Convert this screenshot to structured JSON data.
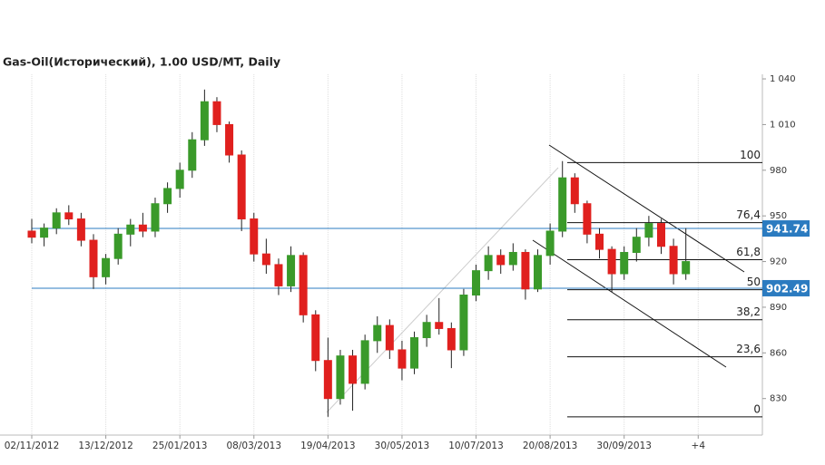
{
  "chart_data": {
    "type": "candlestick",
    "title": "Gas-Oil(Исторический), 1.00 USD/MT, Daily",
    "x": [
      0,
      5,
      10,
      15,
      20,
      25,
      30,
      35,
      40,
      45,
      50,
      55,
      60,
      65,
      70,
      75,
      80,
      85,
      90,
      95,
      100,
      105,
      110,
      115,
      120,
      125,
      130,
      135,
      140,
      145,
      150,
      155,
      160,
      165,
      170,
      175,
      180,
      185,
      190,
      195,
      200,
      205,
      210,
      215,
      220,
      225,
      230,
      235,
      240,
      245,
      250,
      255,
      260,
      265
    ],
    "open": [
      940,
      936,
      942,
      952,
      948,
      934,
      910,
      922,
      938,
      944,
      940,
      958,
      968,
      980,
      1000,
      1025,
      1010,
      990,
      948,
      925,
      918,
      904,
      924,
      885,
      855,
      830,
      858,
      840,
      868,
      878,
      862,
      850,
      870,
      880,
      876,
      862,
      898,
      914,
      924,
      918,
      926,
      902,
      924,
      940,
      975,
      958,
      938,
      928,
      912,
      926,
      936,
      945,
      930,
      912
    ],
    "high": [
      948,
      945,
      955,
      957,
      952,
      938,
      925,
      942,
      948,
      952,
      962,
      972,
      985,
      1005,
      1033,
      1028,
      1012,
      993,
      952,
      935,
      922,
      930,
      926,
      888,
      870,
      862,
      862,
      872,
      884,
      882,
      868,
      874,
      885,
      896,
      880,
      902,
      918,
      930,
      928,
      932,
      928,
      928,
      945,
      986,
      978,
      960,
      942,
      930,
      930,
      942,
      950,
      948,
      935,
      942
    ],
    "low": [
      932,
      930,
      938,
      944,
      930,
      902,
      905,
      918,
      930,
      936,
      936,
      952,
      962,
      975,
      996,
      1005,
      985,
      940,
      920,
      912,
      898,
      900,
      880,
      848,
      818,
      826,
      822,
      836,
      860,
      856,
      842,
      846,
      864,
      872,
      850,
      858,
      894,
      908,
      912,
      914,
      895,
      900,
      918,
      936,
      952,
      932,
      922,
      900,
      908,
      920,
      930,
      925,
      905,
      908
    ],
    "close": [
      936,
      942,
      952,
      948,
      934,
      910,
      922,
      938,
      944,
      940,
      958,
      968,
      980,
      1000,
      1025,
      1010,
      990,
      948,
      925,
      918,
      904,
      924,
      885,
      855,
      830,
      858,
      840,
      868,
      878,
      862,
      850,
      870,
      880,
      876,
      862,
      898,
      914,
      924,
      918,
      926,
      902,
      924,
      940,
      975,
      958,
      938,
      928,
      912,
      926,
      936,
      945,
      930,
      912,
      920
    ],
    "up_color": "#3a9a2a",
    "down_color": "#e0201e",
    "xlim": [
      0,
      296
    ],
    "xticks": [
      {
        "value": 0,
        "label": "02/11/2012"
      },
      {
        "value": 30,
        "label": "13/12/2012"
      },
      {
        "value": 60,
        "label": "25/01/2013"
      },
      {
        "value": 90,
        "label": "08/03/2013"
      },
      {
        "value": 120,
        "label": "19/04/2013"
      },
      {
        "value": 150,
        "label": "30/05/2013"
      },
      {
        "value": 180,
        "label": "10/07/2013"
      },
      {
        "value": 210,
        "label": "20/08/2013"
      },
      {
        "value": 240,
        "label": "30/09/2013"
      },
      {
        "value": 270,
        "label": "+4"
      }
    ],
    "ylim": [
      806,
      1043
    ],
    "yticks": [
      830,
      860,
      890,
      920,
      950,
      980,
      {
        "value": 1010,
        "label": "1 010"
      },
      {
        "value": 1040,
        "label": "1 040"
      }
    ],
    "grid": true,
    "levels": {
      "values": [
        941.74,
        902.49
      ],
      "color": "#2b7bc0"
    },
    "fibonacci": {
      "labels": [
        "100",
        "76,4",
        "61,8",
        "50",
        "38,2",
        "23,6",
        "0"
      ],
      "values": [
        985,
        945.6,
        921.2,
        901.5,
        881.8,
        857.4,
        818
      ]
    }
  }
}
